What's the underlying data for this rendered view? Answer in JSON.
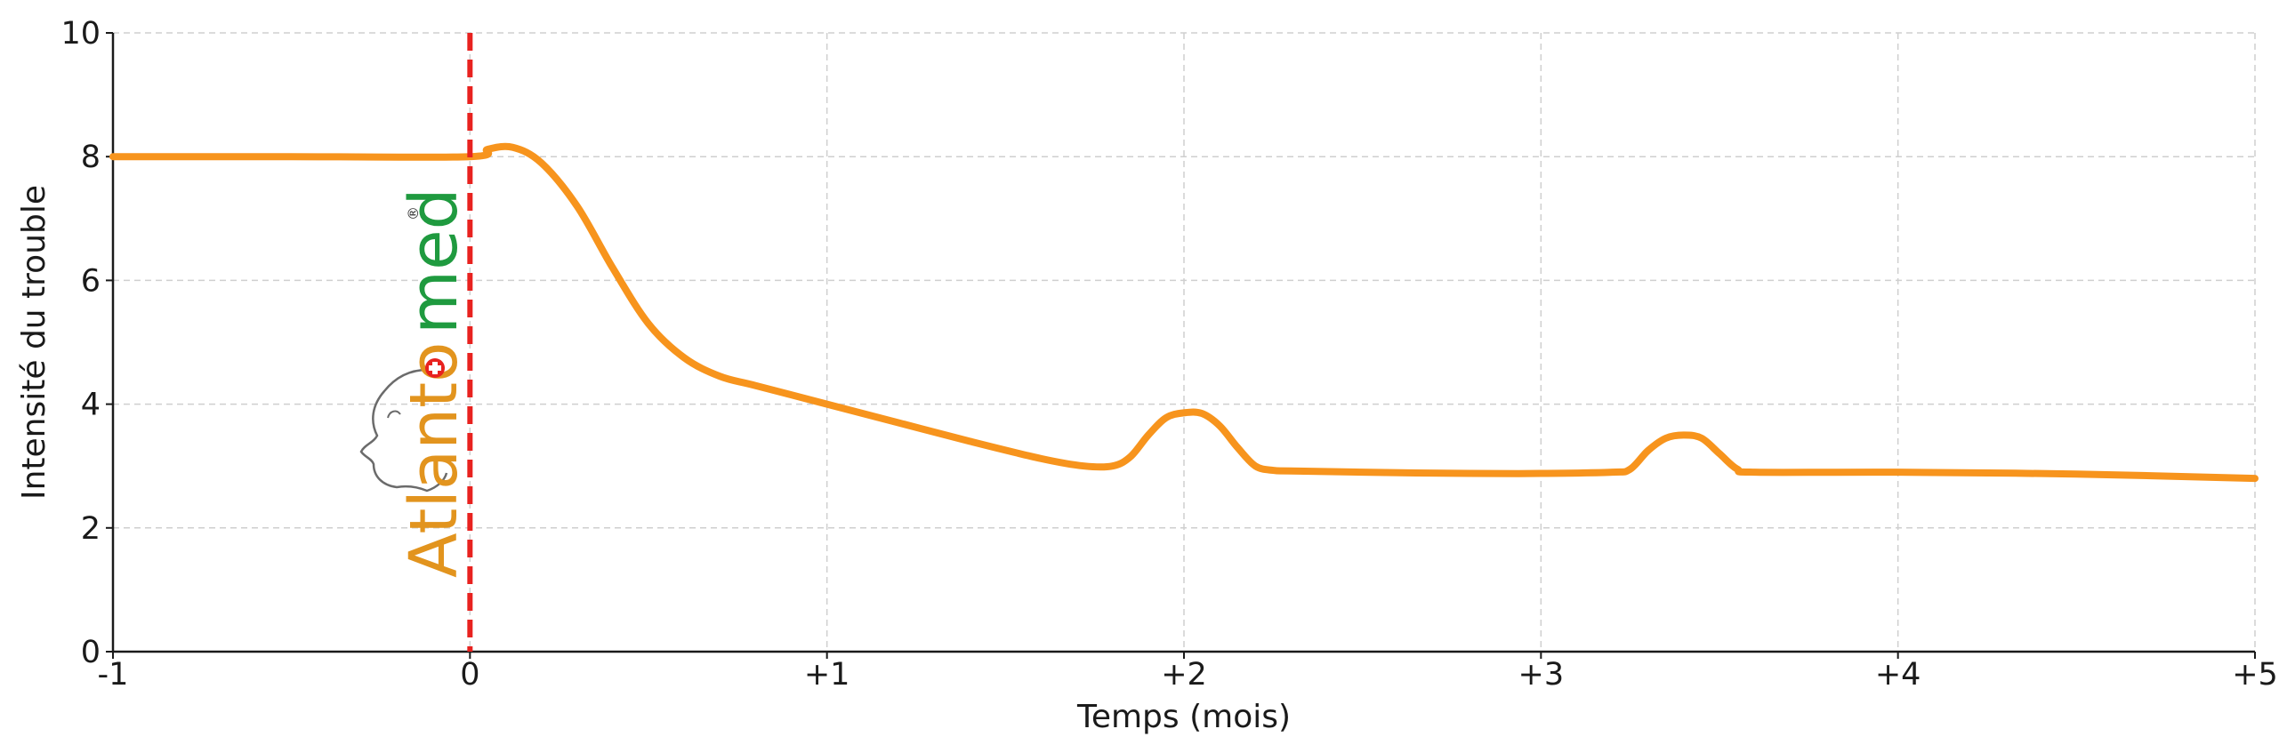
{
  "logo": {
    "part1": "Atlanto",
    "part2": "med",
    "registered": "®"
  },
  "chart_data": {
    "type": "line",
    "title": "",
    "xlabel": "Temps (mois)",
    "ylabel": "Intensité du trouble",
    "xlim": [
      -1,
      5
    ],
    "ylim": [
      0,
      10
    ],
    "x_ticks": [
      -1,
      0,
      1,
      2,
      3,
      4,
      5
    ],
    "x_tick_labels": [
      "-1",
      "0",
      "+1",
      "+2",
      "+3",
      "+4",
      "+5"
    ],
    "y_ticks": [
      0,
      2,
      4,
      6,
      8,
      10
    ],
    "y_tick_labels": [
      "0",
      "2",
      "4",
      "6",
      "8",
      "10"
    ],
    "grid": true,
    "series": [
      {
        "color": "#f7941d",
        "x": [
          -1.0,
          -0.5,
          0.0,
          0.05,
          0.12,
          0.2,
          0.3,
          0.4,
          0.5,
          0.6,
          0.7,
          0.8,
          1.0,
          1.2,
          1.4,
          1.6,
          1.72,
          1.8,
          1.85,
          1.9,
          1.95,
          2.0,
          2.05,
          2.1,
          2.15,
          2.2,
          2.25,
          2.3,
          2.5,
          2.8,
          3.0,
          3.2,
          3.25,
          3.3,
          3.35,
          3.4,
          3.45,
          3.5,
          3.55,
          3.6,
          4.0,
          4.5,
          5.0
        ],
        "y": [
          8.0,
          8.0,
          8.0,
          8.12,
          8.15,
          7.9,
          7.2,
          6.2,
          5.3,
          4.75,
          4.45,
          4.3,
          4.0,
          3.7,
          3.4,
          3.12,
          3.0,
          3.0,
          3.15,
          3.5,
          3.78,
          3.86,
          3.85,
          3.65,
          3.3,
          3.0,
          2.93,
          2.92,
          2.9,
          2.88,
          2.88,
          2.9,
          2.95,
          3.25,
          3.45,
          3.5,
          3.45,
          3.2,
          2.95,
          2.9,
          2.9,
          2.87,
          2.8
        ]
      }
    ],
    "annotations": [
      {
        "type": "vline",
        "x": 0,
        "style": "dashed",
        "color": "#e8221f"
      }
    ]
  }
}
